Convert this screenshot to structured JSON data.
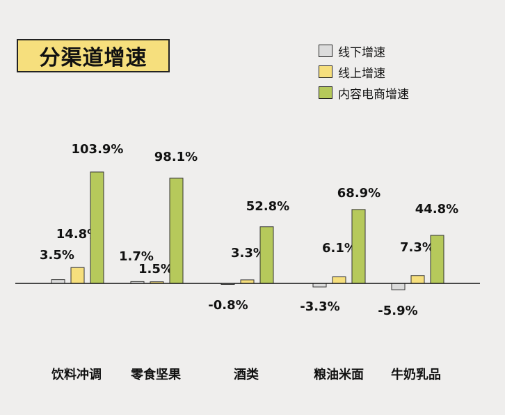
{
  "title": "分渠道增速",
  "colors": {
    "offline": "#dcdcdc",
    "online": "#f6df7d",
    "content": "#b6c95b",
    "background": "#efeeed"
  },
  "chart_data": {
    "type": "bar",
    "title": "分渠道增速",
    "categories": [
      "饮料冲调",
      "零食坚果",
      "酒类",
      "粮油米面",
      "牛奶乳品"
    ],
    "series": [
      {
        "name": "线下增速",
        "values": [
          3.5,
          1.7,
          -0.8,
          -3.3,
          -5.9
        ],
        "labels": [
          "3.5%",
          "1.7%",
          "-0.8%",
          "-3.3%",
          "-5.9%"
        ]
      },
      {
        "name": "线上增速",
        "values": [
          14.8,
          1.5,
          3.3,
          6.1,
          7.3
        ],
        "labels": [
          "14.8%",
          "1.5%",
          "3.3%",
          "6.1%",
          "7.3%"
        ]
      },
      {
        "name": "内容电商增速",
        "values": [
          103.9,
          98.1,
          52.8,
          68.9,
          44.8
        ],
        "labels": [
          "103.9%",
          "98.1%",
          "52.8%",
          "68.9%",
          "44.8%"
        ]
      }
    ],
    "legend_position": "top-right",
    "grid": false
  }
}
